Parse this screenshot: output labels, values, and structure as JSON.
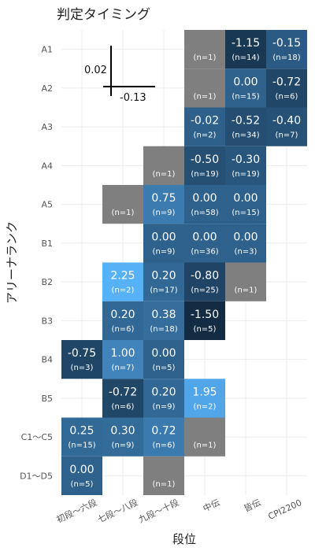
{
  "chart_data": {
    "type": "heatmap",
    "title": "判定タイミング",
    "xlabel": "段位",
    "ylabel": "アリーナランク",
    "x_categories": [
      "初段～六段",
      "七段～八段",
      "九段～十段",
      "中伝",
      "皆伝",
      "CPI2200"
    ],
    "y_categories": [
      "A1",
      "A2",
      "A3",
      "A4",
      "A5",
      "B1",
      "B2",
      "B3",
      "B4",
      "B5",
      "C1～C5",
      "D1～D5"
    ],
    "legend": {
      "up_label": "0.02",
      "down_label": "-0.13"
    },
    "colors": {
      "na": "#7f7f7f",
      "low": "#132b43",
      "high": "#56b1f7"
    },
    "cells": [
      {
        "y": "A1",
        "x": "中伝",
        "value": null,
        "n": "(n=1)"
      },
      {
        "y": "A1",
        "x": "皆伝",
        "value": "-1.15",
        "n": "(n=14)"
      },
      {
        "y": "A1",
        "x": "CPI2200",
        "value": "-0.15",
        "n": "(n=18)"
      },
      {
        "y": "A2",
        "x": "中伝",
        "value": null,
        "n": "(n=1)"
      },
      {
        "y": "A2",
        "x": "皆伝",
        "value": "0.00",
        "n": "(n=15)"
      },
      {
        "y": "A2",
        "x": "CPI2200",
        "value": "-0.72",
        "n": "(n=6)"
      },
      {
        "y": "A3",
        "x": "中伝",
        "value": "-0.02",
        "n": "(n=2)"
      },
      {
        "y": "A3",
        "x": "皆伝",
        "value": "-0.52",
        "n": "(n=34)"
      },
      {
        "y": "A3",
        "x": "CPI2200",
        "value": "-0.40",
        "n": "(n=7)"
      },
      {
        "y": "A4",
        "x": "九段～十段",
        "value": null,
        "n": "(n=1)"
      },
      {
        "y": "A4",
        "x": "中伝",
        "value": "-0.50",
        "n": "(n=19)"
      },
      {
        "y": "A4",
        "x": "皆伝",
        "value": "-0.30",
        "n": "(n=19)"
      },
      {
        "y": "A5",
        "x": "七段～八段",
        "value": null,
        "n": "(n=1)"
      },
      {
        "y": "A5",
        "x": "九段～十段",
        "value": "0.75",
        "n": "(n=9)"
      },
      {
        "y": "A5",
        "x": "中伝",
        "value": "0.00",
        "n": "(n=58)"
      },
      {
        "y": "A5",
        "x": "皆伝",
        "value": "0.00",
        "n": "(n=15)"
      },
      {
        "y": "B1",
        "x": "九段～十段",
        "value": "0.00",
        "n": "(n=9)"
      },
      {
        "y": "B1",
        "x": "中伝",
        "value": "0.00",
        "n": "(n=36)"
      },
      {
        "y": "B1",
        "x": "皆伝",
        "value": "0.00",
        "n": "(n=3)"
      },
      {
        "y": "B2",
        "x": "七段～八段",
        "value": "2.25",
        "n": "(n=2)"
      },
      {
        "y": "B2",
        "x": "九段～十段",
        "value": "0.20",
        "n": "(n=17)"
      },
      {
        "y": "B2",
        "x": "中伝",
        "value": "-0.80",
        "n": "(n=25)"
      },
      {
        "y": "B2",
        "x": "皆伝",
        "value": null,
        "n": "(n=1)"
      },
      {
        "y": "B3",
        "x": "七段～八段",
        "value": "0.20",
        "n": "(n=6)"
      },
      {
        "y": "B3",
        "x": "九段～十段",
        "value": "0.38",
        "n": "(n=18)"
      },
      {
        "y": "B3",
        "x": "中伝",
        "value": "-1.50",
        "n": "(n=5)"
      },
      {
        "y": "B4",
        "x": "初段～六段",
        "value": "-0.75",
        "n": "(n=3)"
      },
      {
        "y": "B4",
        "x": "七段～八段",
        "value": "1.00",
        "n": "(n=7)"
      },
      {
        "y": "B4",
        "x": "九段～十段",
        "value": "0.00",
        "n": "(n=5)"
      },
      {
        "y": "B5",
        "x": "七段～八段",
        "value": "-0.72",
        "n": "(n=6)"
      },
      {
        "y": "B5",
        "x": "九段～十段",
        "value": "0.20",
        "n": "(n=9)"
      },
      {
        "y": "B5",
        "x": "中伝",
        "value": "1.95",
        "n": "(n=2)"
      },
      {
        "y": "C1～C5",
        "x": "初段～六段",
        "value": "0.25",
        "n": "(n=15)"
      },
      {
        "y": "C1～C5",
        "x": "七段～八段",
        "value": "0.30",
        "n": "(n=9)"
      },
      {
        "y": "C1～C5",
        "x": "九段～十段",
        "value": "0.72",
        "n": "(n=6)"
      },
      {
        "y": "C1～C5",
        "x": "中伝",
        "value": null,
        "n": "(n=1)"
      },
      {
        "y": "D1～D5",
        "x": "初段～六段",
        "value": "0.00",
        "n": "(n=5)"
      },
      {
        "y": "D1～D5",
        "x": "九段～十段",
        "value": null,
        "n": "(n=1)"
      }
    ]
  }
}
